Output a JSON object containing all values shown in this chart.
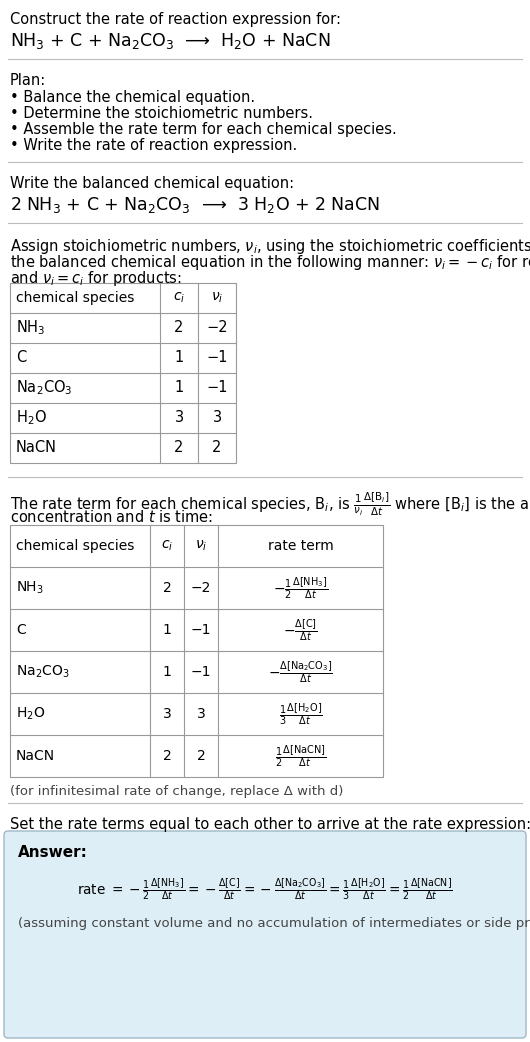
{
  "bg_color": "#ffffff",
  "text_color": "#000000",
  "answer_bg": "#ddeef6",
  "answer_border": "#a0b8c8",
  "section1_title": "Construct the rate of reaction expression for:",
  "section1_eq": "NH$_3$ + C + Na$_2$CO$_3$  ⟶  H$_2$O + NaCN",
  "plan_title": "Plan:",
  "plan_items": [
    "• Balance the chemical equation.",
    "• Determine the stoichiometric numbers.",
    "• Assemble the rate term for each chemical species.",
    "• Write the rate of reaction expression."
  ],
  "balanced_title": "Write the balanced chemical equation:",
  "balanced_eq": "2 NH$_3$ + C + Na$_2$CO$_3$  ⟶  3 H$_2$O + 2 NaCN",
  "assign_text1": "Assign stoichiometric numbers, $\\nu_i$, using the stoichiometric coefficients, $c_i$, from",
  "assign_text2": "the balanced chemical equation in the following manner: $\\nu_i = -c_i$ for reactants",
  "assign_text3": "and $\\nu_i = c_i$ for products:",
  "table1_headers": [
    "chemical species",
    "$c_i$",
    "$\\nu_i$"
  ],
  "table1_rows": [
    [
      "NH$_3$",
      "2",
      "−2"
    ],
    [
      "C",
      "1",
      "−1"
    ],
    [
      "Na$_2$CO$_3$",
      "1",
      "−1"
    ],
    [
      "H$_2$O",
      "3",
      "3"
    ],
    [
      "NaCN",
      "2",
      "2"
    ]
  ],
  "table2_headers": [
    "chemical species",
    "$c_i$",
    "$\\nu_i$",
    "rate term"
  ],
  "table2_rows": [
    [
      "NH$_3$",
      "2",
      "−2",
      "$-\\frac{1}{2}\\frac{\\Delta[\\mathrm{NH_3}]}{\\Delta t}$"
    ],
    [
      "C",
      "1",
      "−1",
      "$-\\frac{\\Delta[\\mathrm{C}]}{\\Delta t}$"
    ],
    [
      "Na$_2$CO$_3$",
      "1",
      "−1",
      "$-\\frac{\\Delta[\\mathrm{Na_2CO_3}]}{\\Delta t}$"
    ],
    [
      "H$_2$O",
      "3",
      "3",
      "$\\frac{1}{3}\\frac{\\Delta[\\mathrm{H_2O}]}{\\Delta t}$"
    ],
    [
      "NaCN",
      "2",
      "2",
      "$\\frac{1}{2}\\frac{\\Delta[\\mathrm{NaCN}]}{\\Delta t}$"
    ]
  ],
  "infinitesimal_note": "(for infinitesimal rate of change, replace Δ with d)",
  "set_equal_text": "Set the rate terms equal to each other to arrive at the rate expression:",
  "answer_label": "Answer:",
  "answer_note": "(assuming constant volume and no accumulation of intermediates or side products)"
}
